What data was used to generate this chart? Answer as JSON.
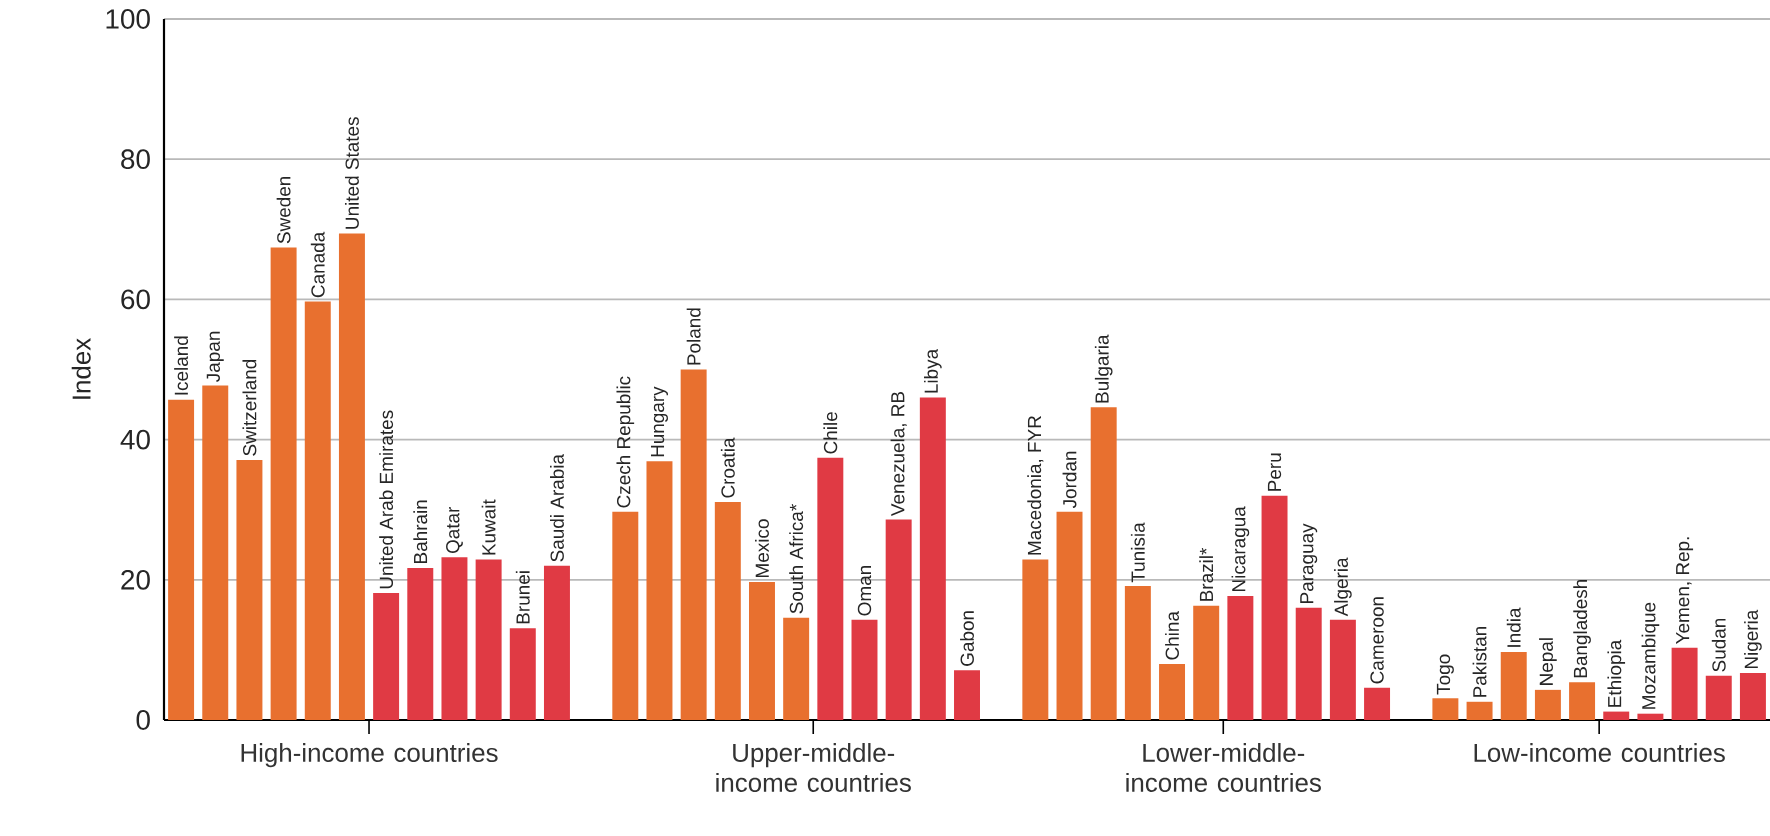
{
  "chart_data": {
    "type": "bar",
    "ylabel": "Index",
    "categories": [
      "Iceland",
      "Japan",
      "Switzerland",
      "Sweden",
      "Canada",
      "United States",
      "United Arab Emirates",
      "Bahrain",
      "Qatar",
      "Kuwait",
      "Brunei",
      "Saudi Arabia",
      null,
      "Czech Republic",
      "Hungary",
      "Poland",
      "Croatia",
      "Mexico",
      "South Africa*",
      "Chile",
      "Oman",
      "Venezuela, RB",
      "Libya",
      "Gabon",
      null,
      "Macedonia, FYR",
      "Jordan",
      "Bulgaria",
      "Tunisia",
      "China",
      "Brazil*",
      "Nicaragua",
      "Peru",
      "Paraguay",
      "Algeria",
      "Cameroon",
      null,
      "Togo",
      "Pakistan",
      "India",
      "Nepal",
      "Bangladesh",
      "Ethiopia",
      "Mozambique",
      "Yemen, Rep.",
      "Sudan",
      "Nigeria"
    ],
    "values": [
      45.7,
      47.7,
      37.1,
      67.4,
      59.7,
      69.4,
      18.1,
      21.7,
      23.2,
      22.9,
      13.1,
      22.0,
      null,
      29.7,
      36.9,
      50.0,
      31.1,
      19.7,
      14.6,
      37.4,
      14.3,
      28.6,
      46.0,
      7.1,
      null,
      22.9,
      29.7,
      44.6,
      19.1,
      8.0,
      16.3,
      17.7,
      32.0,
      16.0,
      14.3,
      4.6,
      null,
      3.1,
      2.6,
      9.7,
      4.3,
      5.4,
      1.2,
      0.9,
      10.3,
      6.3,
      6.7
    ],
    "colors": [
      "#e8702f",
      "#e8702f",
      "#e8702f",
      "#e8702f",
      "#e8702f",
      "#e8702f",
      "#e03a44",
      "#e03a44",
      "#e03a44",
      "#e03a44",
      "#e03a44",
      "#e03a44",
      null,
      "#e8702f",
      "#e8702f",
      "#e8702f",
      "#e8702f",
      "#e8702f",
      "#e8702f",
      "#e03a44",
      "#e03a44",
      "#e03a44",
      "#e03a44",
      "#e03a44",
      null,
      "#e8702f",
      "#e8702f",
      "#e8702f",
      "#e8702f",
      "#e8702f",
      "#e8702f",
      "#e03a44",
      "#e03a44",
      "#e03a44",
      "#e03a44",
      "#e03a44",
      null,
      "#e8702f",
      "#e8702f",
      "#e8702f",
      "#e8702f",
      "#e8702f",
      "#e03a44",
      "#e03a44",
      "#e03a44",
      "#e03a44",
      "#e03a44"
    ],
    "ylim": [
      0,
      100
    ],
    "yticks": [
      0,
      20,
      40,
      60,
      80,
      100
    ],
    "grid": "y",
    "annotations": [
      "High-income countries",
      "Upper-middle-income countries",
      "Lower-middle-income countries",
      "Low-income countries"
    ]
  }
}
